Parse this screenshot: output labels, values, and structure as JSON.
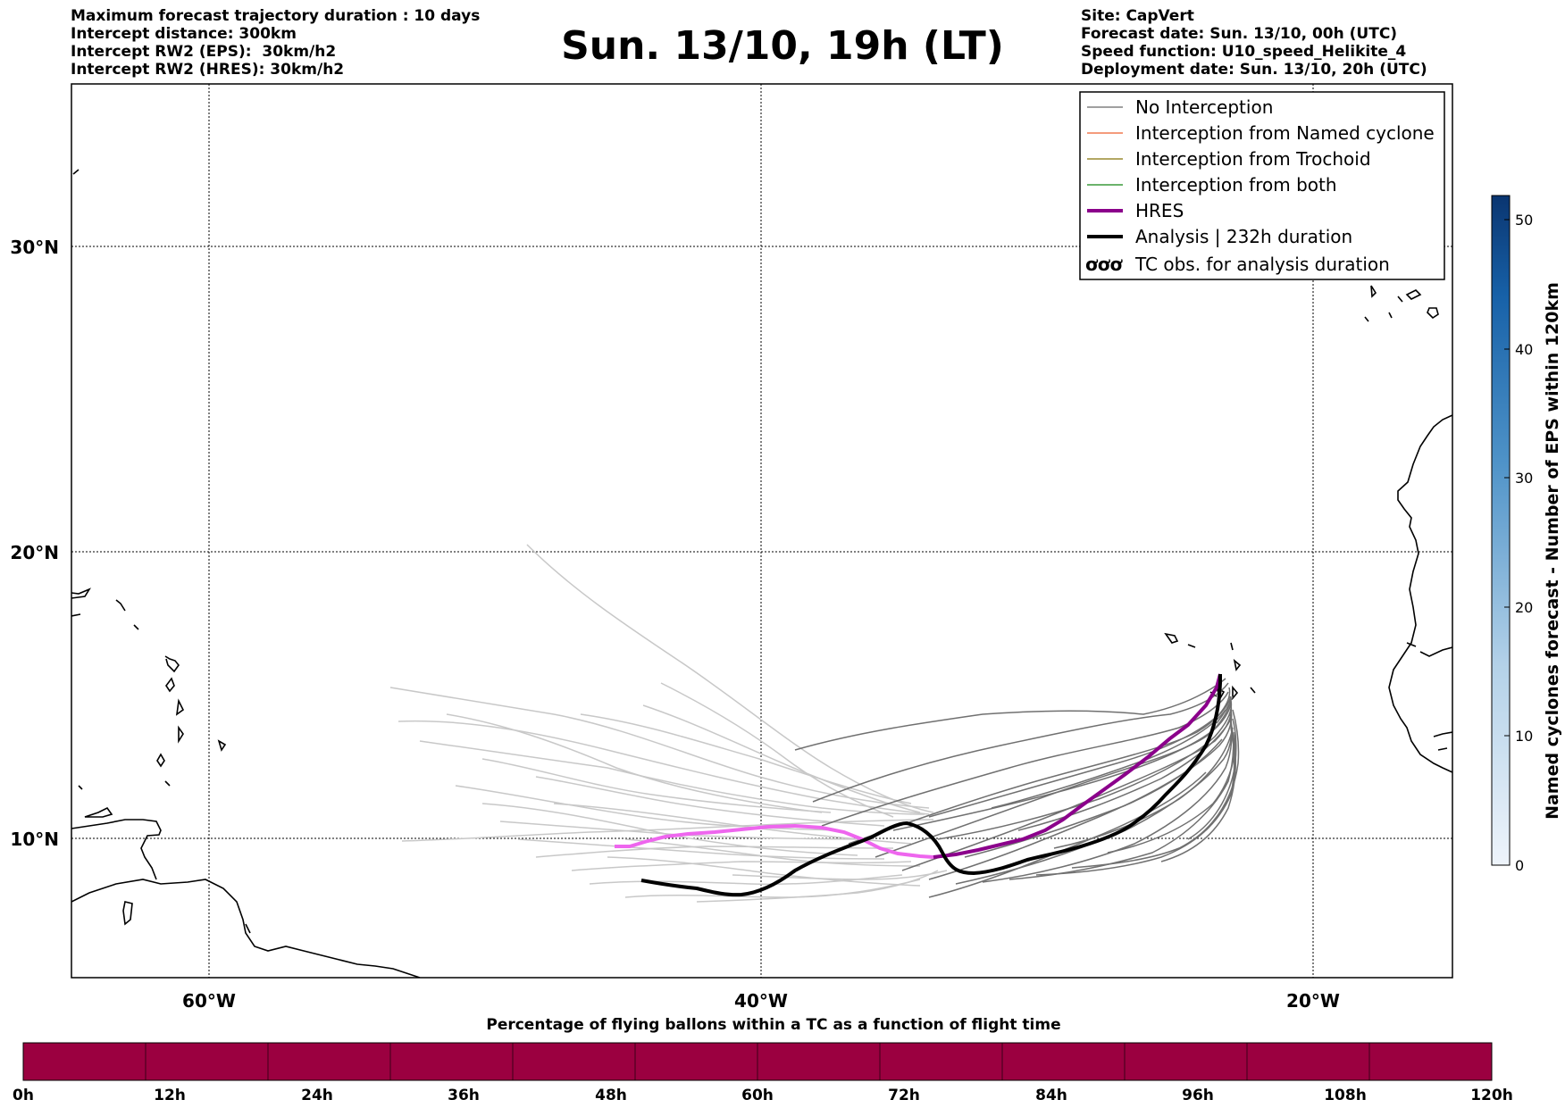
{
  "header_left": [
    "Maximum forecast trajectory duration : 10 days",
    "Intercept distance: 300km",
    "Intercept RW2 (EPS):  30km/h2",
    "Intercept RW2 (HRES): 30km/h2"
  ],
  "title": "Sun. 13/10, 19h (LT)",
  "header_right": [
    "Site: CapVert",
    "Forecast date: Sun. 13/10, 00h (UTC)",
    "Speed function: U10_speed_Helikite_4",
    "Deployment date: Sun. 13/10, 20h (UTC)"
  ],
  "map": {
    "lon_ticks": [
      "60°W",
      "40°W",
      "20°W"
    ],
    "lat_ticks": [
      "30°N",
      "20°N",
      "10°N"
    ],
    "lon_range": [
      -65,
      -15
    ],
    "lat_range": [
      5.5,
      34.8
    ]
  },
  "legend": {
    "items": [
      {
        "label": "No Interception",
        "color": "#808080"
      },
      {
        "label": "Interception from Named cyclone",
        "color": "#f07a50"
      },
      {
        "label": "Interception from Trochoid",
        "color": "#9a8a30"
      },
      {
        "label": "Interception from both",
        "color": "#3a9a3a"
      },
      {
        "label": "HRES",
        "color": "#8b008b"
      },
      {
        "label": "Analysis | 232h duration",
        "color": "#000000"
      },
      {
        "label": "TC obs. for analysis duration",
        "symbol": "ơơơ",
        "color": "#000000"
      }
    ]
  },
  "colorbar_right": {
    "label": "Named cyclones forecast - Number of EPS within 120km",
    "ticks": [
      "0",
      "10",
      "20",
      "30",
      "40",
      "50"
    ]
  },
  "colorbar_bottom": {
    "title": "Percentage of flying ballons within a TC as a function of flight time",
    "ticks": [
      "0h",
      "12h",
      "24h",
      "36h",
      "48h",
      "60h",
      "72h",
      "84h",
      "96h",
      "108h",
      "120h"
    ],
    "fill_color": "#9b0040"
  },
  "colors": {
    "hres": "#8b008b",
    "hres_light": "#ee66ee",
    "analysis": "#000000",
    "no_interception": "#707070",
    "no_interception_light": "#c8c8c8"
  }
}
